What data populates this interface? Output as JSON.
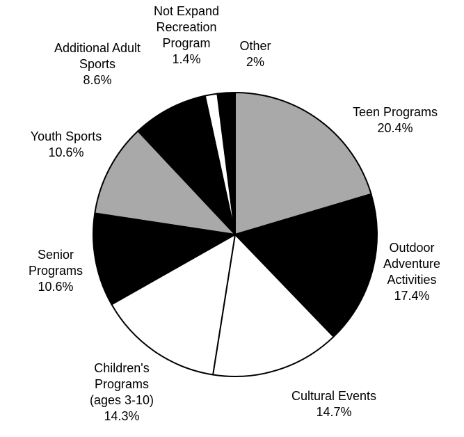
{
  "chart_data": {
    "type": "pie",
    "categories": [
      "Teen Programs",
      "Outdoor Adventure Activities",
      "Cultural Events",
      "Children's Programs (ages 3-10)",
      "Senior Programs",
      "Youth Sports",
      "Additional Adult Sports",
      "Not Expand Recreation Program",
      "Other"
    ],
    "values": [
      20.4,
      17.4,
      14.7,
      14.3,
      10.6,
      10.6,
      8.6,
      1.4,
      2
    ],
    "value_labels": [
      "20.4%",
      "17.4%",
      "14.7%",
      "14.3%",
      "10.6%",
      "10.6%",
      "8.6%",
      "1.4%",
      "2%"
    ],
    "colors": [
      "#a9a9a9",
      "#000000",
      "#ffffff",
      "#ffffff",
      "#000000",
      "#a9a9a9",
      "#000000",
      "#ffffff",
      "#000000"
    ]
  }
}
